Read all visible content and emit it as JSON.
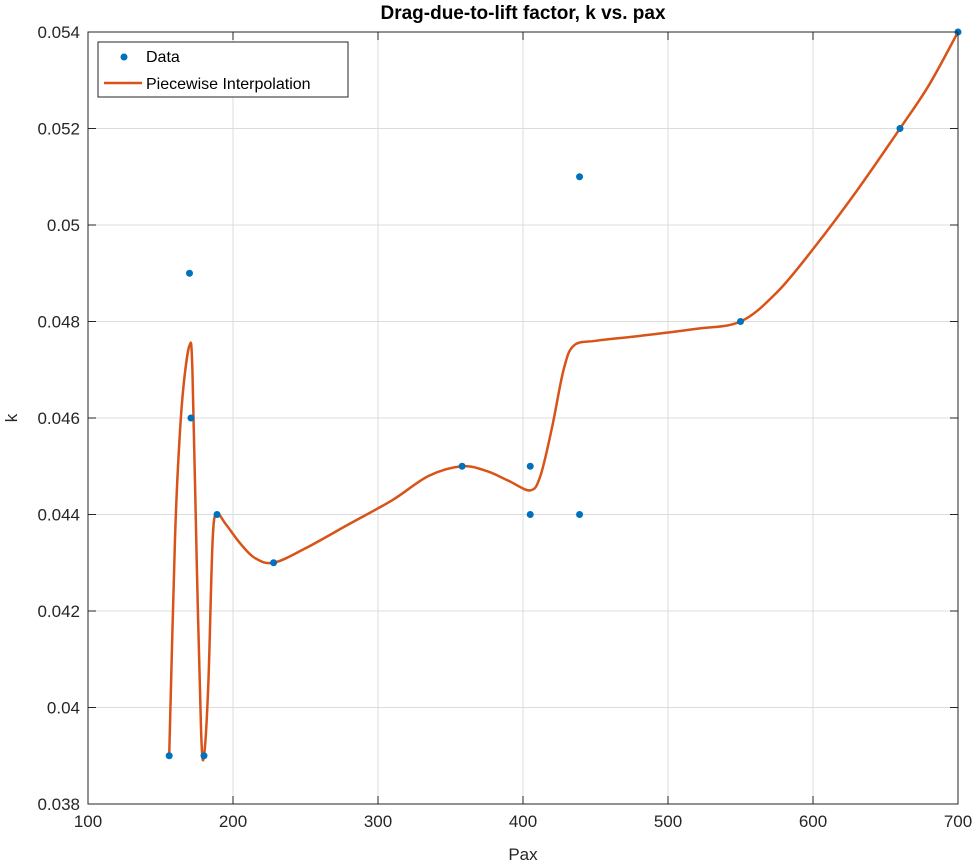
{
  "chart_data": {
    "type": "line",
    "title": "Drag-due-to-lift factor, k vs. pax",
    "xlabel": "Pax",
    "ylabel": "k",
    "xlim": [
      100,
      700
    ],
    "ylim": [
      0.038,
      0.054
    ],
    "xticks": [
      100,
      200,
      300,
      400,
      500,
      600,
      700
    ],
    "yticks": [
      0.038,
      0.04,
      0.042,
      0.044,
      0.046,
      0.048,
      0.05,
      0.052,
      0.054
    ],
    "xtick_labels": [
      "100",
      "200",
      "300",
      "400",
      "500",
      "600",
      "700"
    ],
    "ytick_labels": [
      "0.038",
      "0.04",
      "0.042",
      "0.044",
      "0.046",
      "0.048",
      "0.05",
      "0.052",
      "0.054"
    ],
    "grid": true,
    "legend_position": "top-left",
    "series": [
      {
        "name": "Data",
        "kind": "scatter",
        "color": "#0072BD",
        "points": [
          [
            156,
            0.039
          ],
          [
            170,
            0.049
          ],
          [
            171,
            0.046
          ],
          [
            180,
            0.039
          ],
          [
            189,
            0.044
          ],
          [
            228,
            0.043
          ],
          [
            358,
            0.045
          ],
          [
            405,
            0.045
          ],
          [
            405,
            0.044
          ],
          [
            439,
            0.051
          ],
          [
            439,
            0.044
          ],
          [
            550,
            0.048
          ],
          [
            660,
            0.052
          ],
          [
            700,
            0.054
          ]
        ]
      },
      {
        "name": "Piecewise Interpolation",
        "kind": "line",
        "color": "#D95319",
        "points": [
          [
            156,
            0.039
          ],
          [
            160,
            0.0435
          ],
          [
            163,
            0.0455
          ],
          [
            166,
            0.0467
          ],
          [
            170,
            0.0475
          ],
          [
            172,
            0.047
          ],
          [
            175,
            0.043
          ],
          [
            178,
            0.0395
          ],
          [
            180,
            0.039
          ],
          [
            183,
            0.0405
          ],
          [
            186,
            0.0435
          ],
          [
            189,
            0.044
          ],
          [
            195,
            0.0438
          ],
          [
            205,
            0.0434
          ],
          [
            215,
            0.0431
          ],
          [
            228,
            0.043
          ],
          [
            250,
            0.0433
          ],
          [
            280,
            0.0438
          ],
          [
            310,
            0.0443
          ],
          [
            335,
            0.0448
          ],
          [
            358,
            0.045
          ],
          [
            375,
            0.0449
          ],
          [
            390,
            0.0447
          ],
          [
            405,
            0.0445
          ],
          [
            412,
            0.0448
          ],
          [
            420,
            0.0458
          ],
          [
            428,
            0.047
          ],
          [
            435,
            0.0475
          ],
          [
            450,
            0.0476
          ],
          [
            480,
            0.0477
          ],
          [
            520,
            0.04785
          ],
          [
            550,
            0.048
          ],
          [
            575,
            0.0486
          ],
          [
            600,
            0.0495
          ],
          [
            630,
            0.0507
          ],
          [
            660,
            0.052
          ],
          [
            680,
            0.0529
          ],
          [
            700,
            0.054
          ]
        ]
      }
    ]
  }
}
